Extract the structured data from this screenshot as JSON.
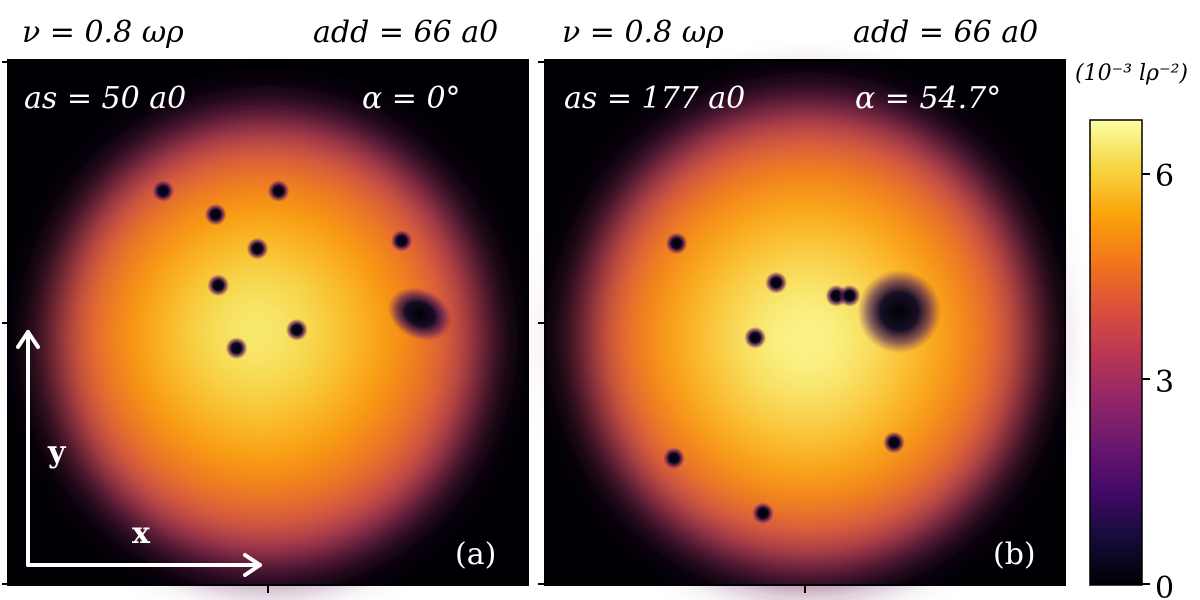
{
  "chart_data": {
    "type": "heatmap",
    "colorbar": {
      "unit_label": "(10⁻³ lρ⁻²)",
      "ticks": [
        "0",
        "3",
        "6"
      ],
      "range": [
        0,
        6.8
      ],
      "colormap": "inferno"
    },
    "panels": [
      {
        "panel_label": "(a)",
        "params": {
          "nu": "ν = 0.8 ωρ",
          "add": "add = 66 a0",
          "as": "as = 50 a0",
          "alpha": "α = 0°"
        },
        "axis_labels": {
          "x": "x",
          "y": "y"
        },
        "peak_density": 6.6,
        "large_core_vortex": {
          "x": 0.58,
          "y": 0.03,
          "rx": 0.08,
          "ry": 0.06,
          "tilt_deg": 25
        },
        "vortices": [
          {
            "x": -0.4,
            "y": 0.5
          },
          {
            "x": -0.2,
            "y": 0.41
          },
          {
            "x": 0.04,
            "y": 0.5
          },
          {
            "x": -0.04,
            "y": 0.28
          },
          {
            "x": 0.51,
            "y": 0.31
          },
          {
            "x": -0.19,
            "y": 0.14
          },
          {
            "x": 0.11,
            "y": -0.03
          },
          {
            "x": -0.12,
            "y": -0.1
          }
        ]
      },
      {
        "panel_label": "(b)",
        "params": {
          "nu": "ν = 0.8 ωρ",
          "add": "add = 66 a0",
          "as": "as = 177 a0",
          "alpha": "α = 54.7°"
        },
        "axis_labels": {
          "x": "",
          "y": ""
        },
        "peak_density": 6.8,
        "large_core_vortex": {
          "x": 0.36,
          "y": 0.04,
          "rx": 0.1,
          "ry": 0.1,
          "tilt_deg": 0
        },
        "vortices": [
          {
            "x": -0.49,
            "y": 0.3
          },
          {
            "x": -0.11,
            "y": 0.15
          },
          {
            "x": 0.12,
            "y": 0.1
          },
          {
            "x": 0.17,
            "y": 0.1
          },
          {
            "x": -0.19,
            "y": -0.06
          },
          {
            "x": -0.5,
            "y": -0.52
          },
          {
            "x": 0.34,
            "y": -0.46
          },
          {
            "x": -0.16,
            "y": -0.73
          }
        ]
      }
    ]
  }
}
